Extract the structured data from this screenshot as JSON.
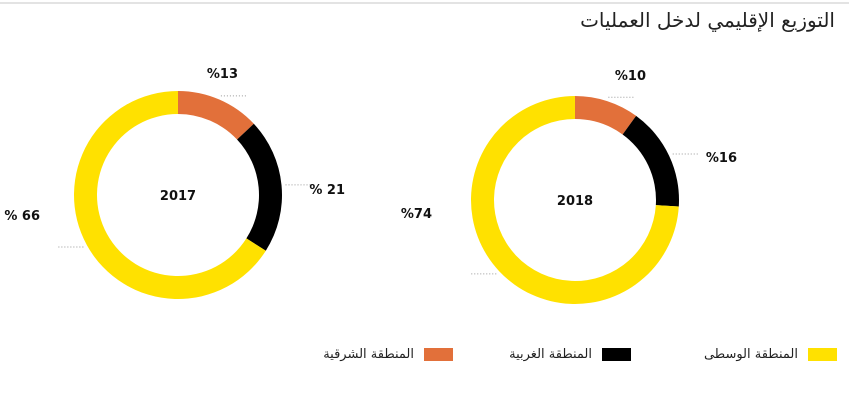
{
  "title": "التوزيع الإقليمي لدخل العمليات",
  "chart_data": [
    {
      "type": "pie",
      "donut": true,
      "center_label": "2017",
      "categories": [
        "المنطقة الشرقية",
        "المنطقة الغربية",
        "المنطقة الوسطى"
      ],
      "values": [
        13,
        21,
        66
      ],
      "labels": [
        "%13",
        "% 21",
        "% 66"
      ],
      "colors": [
        "#e2703a",
        "#000000",
        "#ffe100"
      ]
    },
    {
      "type": "pie",
      "donut": true,
      "center_label": "2018",
      "categories": [
        "المنطقة الشرقية",
        "المنطقة الغربية",
        "المنطقة الوسطى"
      ],
      "values": [
        10,
        16,
        74
      ],
      "labels": [
        "%10",
        "%16",
        "%74"
      ],
      "colors": [
        "#e2703a",
        "#000000",
        "#ffe100"
      ]
    }
  ],
  "legend": [
    {
      "label": "المنطقة الوسطى",
      "color": "#ffe100"
    },
    {
      "label": "المنطقة الغربية",
      "color": "#000000"
    },
    {
      "label": "المنطقة الشرقية",
      "color": "#e2703a"
    }
  ]
}
